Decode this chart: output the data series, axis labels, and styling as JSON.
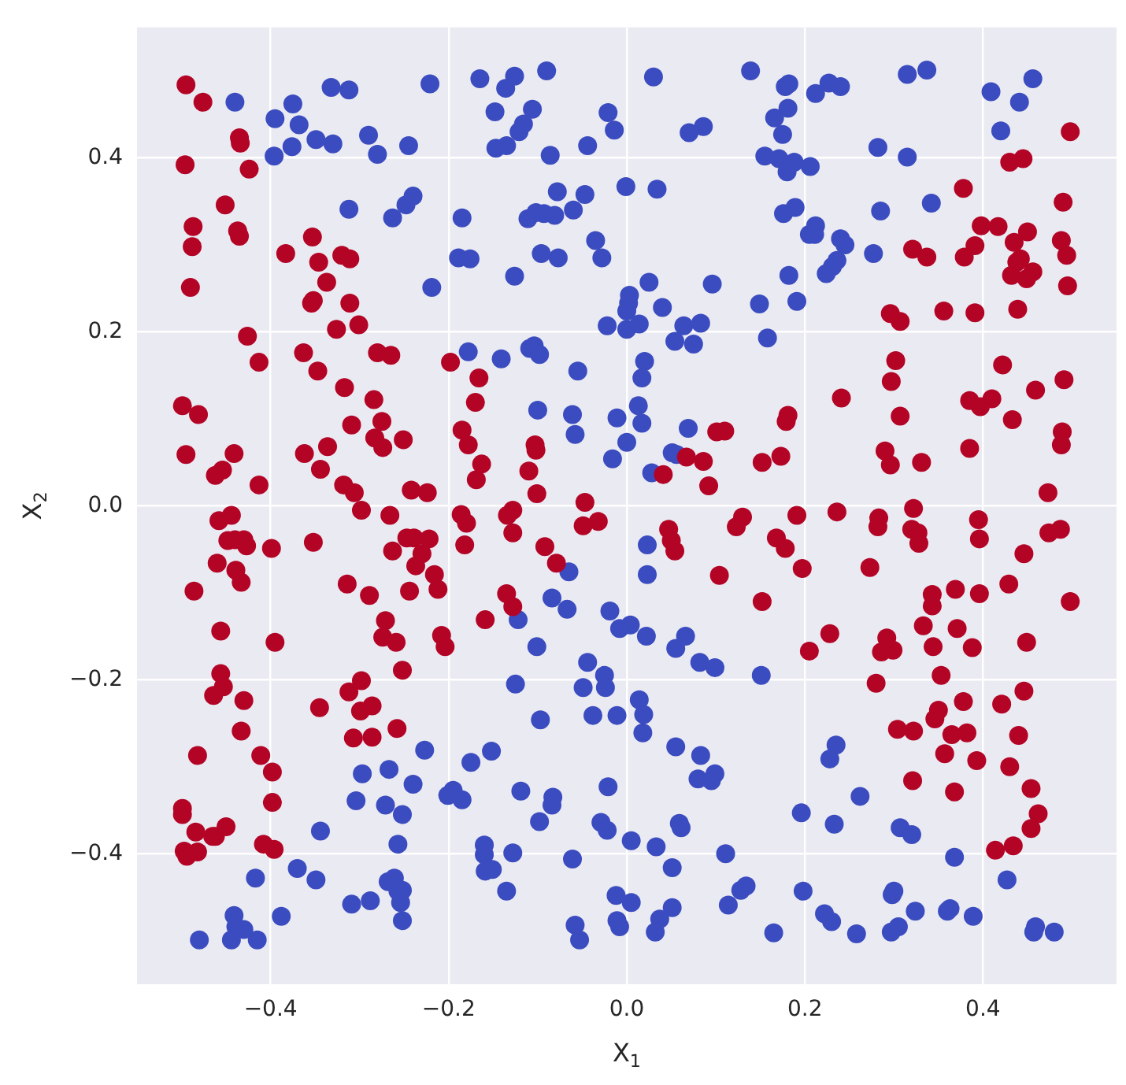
{
  "chart_data": {
    "type": "scatter",
    "xlabel": "X$_{1}$",
    "ylabel": "X$_{2}$",
    "xlim": [
      -0.55,
      0.55
    ],
    "ylim": [
      -0.55,
      0.55
    ],
    "xticks": [
      {
        "value": -0.4,
        "label": "−0.4"
      },
      {
        "value": -0.2,
        "label": "−0.2"
      },
      {
        "value": 0,
        "label": "0.0"
      },
      {
        "value": 0.2,
        "label": "0.2"
      },
      {
        "value": 0.4,
        "label": "0.4"
      }
    ],
    "yticks": [
      {
        "value": -0.4,
        "label": "−0.4"
      },
      {
        "value": -0.2,
        "label": "−0.2"
      },
      {
        "value": 0,
        "label": "0.0"
      },
      {
        "value": 0.2,
        "label": "0.2"
      },
      {
        "value": 0.4,
        "label": "0.4"
      }
    ],
    "grid": true,
    "marker": "circle",
    "series": [
      {
        "color": "#b40426",
        "x": [
          -0.495,
          -0.476,
          -0.435,
          -0.434,
          -0.496,
          -0.424,
          -0.451,
          -0.487,
          -0.437,
          -0.435,
          -0.488,
          -0.49,
          -0.353,
          -0.383,
          -0.346,
          -0.32,
          -0.311,
          -0.337,
          -0.354,
          -0.352,
          -0.311,
          -0.326,
          -0.301,
          -0.426,
          -0.413,
          -0.363,
          -0.347,
          -0.28,
          -0.265,
          -0.317,
          -0.198,
          -0.166,
          -0.17,
          -0.284,
          -0.499,
          -0.481,
          -0.275,
          -0.309,
          -0.283,
          -0.274,
          -0.251,
          -0.185,
          -0.178,
          -0.163,
          -0.169,
          -0.103,
          -0.102,
          -0.11,
          -0.101,
          -0.047,
          -0.495,
          -0.441,
          -0.462,
          -0.454,
          -0.413,
          -0.362,
          -0.336,
          -0.344,
          -0.318,
          -0.306,
          -0.242,
          -0.224,
          0.498,
          0.43,
          0.445,
          0.378,
          0.49,
          0.398,
          0.417,
          0.391,
          0.435,
          0.45,
          0.488,
          0.494,
          0.379,
          0.321,
          0.337,
          0.438,
          0.442,
          0.432,
          0.449,
          0.456,
          0.495,
          0.296,
          0.307,
          0.356,
          0.391,
          0.439,
          0.302,
          0.297,
          0.241,
          0.307,
          0.422,
          0.385,
          0.397,
          0.41,
          0.433,
          0.459,
          0.491,
          0.489,
          0.488,
          0.385,
          0.473,
          0.29,
          0.296,
          0.331,
          0.181,
          0.179,
          0.101,
          0.11,
          0.067,
          0.086,
          0.041,
          0.092,
          0.152,
          0.173,
          -0.298,
          -0.266,
          -0.186,
          -0.18,
          -0.134,
          -0.128,
          -0.128,
          -0.032,
          -0.049,
          -0.458,
          -0.444,
          -0.448,
          -0.44,
          -0.43,
          -0.427,
          -0.399,
          -0.352,
          -0.46,
          -0.439,
          -0.433,
          -0.486,
          -0.247,
          -0.239,
          -0.222,
          -0.263,
          -0.23,
          -0.237,
          -0.216,
          -0.314,
          -0.289,
          -0.244,
          -0.212,
          -0.182,
          -0.092,
          -0.079,
          -0.135,
          -0.128,
          -0.159,
          -0.271,
          -0.274,
          -0.259,
          -0.208,
          -0.204,
          -0.252,
          -0.456,
          -0.395,
          -0.456,
          -0.453,
          -0.464,
          -0.43,
          -0.433,
          -0.482,
          -0.411,
          -0.398,
          -0.398,
          -0.499,
          -0.499,
          -0.484,
          -0.465,
          -0.462,
          -0.45,
          -0.497,
          -0.494,
          -0.482,
          -0.408,
          -0.396,
          -0.298,
          -0.312,
          -0.345,
          -0.299,
          -0.286,
          -0.258,
          -0.307,
          -0.286,
          0.13,
          0.123,
          0.191,
          0.236,
          0.283,
          0.282,
          0.322,
          0.32,
          0.327,
          0.328,
          0.395,
          0.396,
          0.474,
          0.487,
          0.446,
          0.047,
          0.05,
          0.054,
          0.168,
          0.178,
          0.104,
          0.197,
          0.273,
          0.152,
          0.343,
          0.343,
          0.369,
          0.396,
          0.429,
          0.498,
          0.333,
          0.371,
          0.292,
          0.286,
          0.299,
          0.344,
          0.388,
          0.449,
          0.205,
          0.228,
          0.28,
          0.353,
          0.446,
          0.378,
          0.421,
          0.35,
          0.346,
          0.304,
          0.322,
          0.365,
          0.382,
          0.44,
          0.357,
          0.393,
          0.43,
          0.454,
          0.321,
          0.368,
          0.462,
          0.454,
          0.414,
          0.434
        ],
        "values": [
          0.484,
          0.464,
          0.423,
          0.417,
          0.392,
          0.387,
          0.346,
          0.321,
          0.316,
          0.31,
          0.298,
          0.251,
          0.309,
          0.29,
          0.28,
          0.288,
          0.284,
          0.257,
          0.233,
          0.236,
          0.233,
          0.203,
          0.208,
          0.195,
          0.165,
          0.176,
          0.155,
          0.176,
          0.173,
          0.136,
          0.165,
          0.147,
          0.119,
          0.122,
          0.115,
          0.105,
          0.097,
          0.093,
          0.078,
          0.067,
          0.076,
          0.087,
          0.07,
          0.048,
          0.03,
          0.07,
          0.064,
          0.04,
          0.014,
          0.004,
          0.059,
          0.06,
          0.035,
          0.041,
          0.024,
          0.06,
          0.068,
          0.042,
          0.024,
          0.015,
          0.018,
          0.015,
          0.43,
          0.395,
          0.399,
          0.365,
          0.349,
          0.322,
          0.321,
          0.299,
          0.303,
          0.315,
          0.305,
          0.288,
          0.286,
          0.295,
          0.286,
          0.28,
          0.284,
          0.265,
          0.261,
          0.269,
          0.253,
          0.221,
          0.212,
          0.224,
          0.222,
          0.226,
          0.167,
          0.143,
          0.124,
          0.103,
          0.162,
          0.121,
          0.114,
          0.123,
          0.099,
          0.133,
          0.145,
          0.085,
          0.07,
          0.066,
          0.015,
          0.063,
          0.047,
          0.05,
          0.104,
          0.097,
          0.085,
          0.086,
          0.056,
          0.051,
          0.036,
          0.023,
          0.05,
          0.057,
          -0.005,
          -0.011,
          -0.01,
          -0.02,
          -0.011,
          -0.005,
          -0.031,
          -0.018,
          -0.023,
          -0.017,
          -0.011,
          -0.04,
          -0.039,
          -0.039,
          -0.046,
          -0.049,
          -0.042,
          -0.066,
          -0.074,
          -0.088,
          -0.098,
          -0.037,
          -0.037,
          -0.038,
          -0.052,
          -0.055,
          -0.069,
          -0.079,
          -0.09,
          -0.103,
          -0.098,
          -0.096,
          -0.045,
          -0.047,
          -0.066,
          -0.101,
          -0.116,
          -0.131,
          -0.132,
          -0.151,
          -0.157,
          -0.149,
          -0.162,
          -0.189,
          -0.144,
          -0.157,
          -0.193,
          -0.208,
          -0.218,
          -0.224,
          -0.259,
          -0.287,
          -0.287,
          -0.306,
          -0.341,
          -0.348,
          -0.355,
          -0.375,
          -0.38,
          -0.38,
          -0.369,
          -0.397,
          -0.403,
          -0.398,
          -0.389,
          -0.395,
          -0.201,
          -0.214,
          -0.232,
          -0.236,
          -0.23,
          -0.256,
          -0.267,
          -0.266,
          -0.013,
          -0.024,
          -0.011,
          -0.007,
          -0.014,
          -0.024,
          -0.003,
          -0.027,
          -0.031,
          -0.043,
          -0.016,
          -0.038,
          -0.031,
          -0.027,
          -0.055,
          -0.027,
          -0.04,
          -0.052,
          -0.037,
          -0.049,
          -0.08,
          -0.072,
          -0.071,
          -0.11,
          -0.102,
          -0.115,
          -0.096,
          -0.101,
          -0.09,
          -0.11,
          -0.138,
          -0.141,
          -0.152,
          -0.168,
          -0.166,
          -0.162,
          -0.163,
          -0.157,
          -0.167,
          -0.147,
          -0.204,
          -0.195,
          -0.213,
          -0.225,
          -0.228,
          -0.235,
          -0.245,
          -0.257,
          -0.259,
          -0.263,
          -0.261,
          -0.264,
          -0.285,
          -0.293,
          -0.3,
          -0.325,
          -0.316,
          -0.329,
          -0.354,
          -0.371,
          -0.396,
          -0.391
        ]
      },
      {
        "color": "#3b4cc0",
        "x": [
          -0.44,
          -0.375,
          -0.395,
          -0.368,
          -0.396,
          -0.376,
          -0.349,
          -0.33,
          -0.332,
          -0.312,
          -0.29,
          -0.28,
          -0.245,
          -0.221,
          -0.165,
          -0.136,
          -0.126,
          -0.09,
          -0.148,
          -0.106,
          -0.116,
          -0.121,
          -0.147,
          -0.135,
          -0.086,
          -0.044,
          -0.021,
          -0.014,
          -0.001,
          -0.312,
          -0.263,
          -0.248,
          -0.24,
          -0.185,
          -0.189,
          -0.176,
          -0.219,
          -0.126,
          -0.111,
          -0.102,
          -0.093,
          -0.081,
          -0.078,
          -0.047,
          -0.06,
          -0.096,
          -0.077,
          -0.035,
          -0.028,
          -0.022,
          0.003,
          0.002,
          0.0,
          0.014,
          0.0,
          0.025,
          0.04,
          -0.178,
          -0.141,
          -0.109,
          -0.104,
          -0.098,
          -0.055,
          -0.1,
          -0.061,
          -0.058,
          -0.011,
          -0.016,
          0.0,
          0.03,
          0.139,
          0.178,
          0.182,
          0.212,
          0.227,
          0.24,
          0.181,
          0.166,
          0.175,
          0.07,
          0.086,
          0.155,
          0.171,
          0.188,
          0.18,
          0.206,
          0.315,
          0.337,
          0.282,
          0.315,
          0.409,
          0.456,
          0.441,
          0.42,
          0.034,
          0.176,
          0.189,
          0.285,
          0.342,
          0.212,
          0.205,
          0.211,
          0.24,
          0.245,
          0.277,
          0.236,
          0.231,
          0.224,
          0.182,
          0.096,
          0.149,
          0.191,
          0.064,
          0.083,
          0.054,
          0.075,
          0.158,
          0.02,
          0.017,
          0.013,
          0.017,
          0.069,
          0.051,
          0.056,
          0.028,
          -0.065,
          -0.084,
          -0.067,
          -0.019,
          -0.008,
          0.004,
          -0.122,
          -0.101,
          -0.044,
          -0.025,
          -0.024,
          -0.049,
          -0.125,
          -0.097,
          -0.038,
          -0.011,
          -0.227,
          -0.152,
          -0.175,
          -0.297,
          -0.267,
          -0.24,
          -0.304,
          -0.271,
          -0.252,
          -0.201,
          -0.195,
          -0.185,
          -0.119,
          -0.083,
          -0.084,
          -0.098,
          -0.021,
          -0.029,
          -0.022,
          0.005,
          -0.344,
          -0.257,
          -0.16,
          -0.16,
          -0.159,
          -0.151,
          -0.128,
          -0.061,
          -0.135,
          -0.012,
          0.005,
          -0.011,
          -0.008,
          -0.058,
          -0.053,
          -0.417,
          -0.37,
          -0.349,
          -0.441,
          -0.439,
          -0.43,
          -0.388,
          -0.48,
          -0.444,
          -0.415,
          -0.309,
          -0.288,
          -0.268,
          -0.261,
          -0.257,
          -0.252,
          -0.254,
          -0.252,
          0.023,
          0.023,
          0.022,
          0.066,
          0.055,
          0.082,
          0.099,
          0.151,
          0.014,
          0.019,
          0.018,
          0.055,
          0.083,
          0.08,
          0.095,
          0.099,
          0.235,
          0.228,
          0.262,
          0.196,
          0.233,
          0.059,
          0.061,
          0.033,
          0.111,
          0.051,
          0.307,
          0.32,
          0.368,
          0.427,
          0.128,
          0.134,
          0.198,
          0.114,
          0.051,
          0.037,
          0.032,
          0.165,
          0.222,
          0.23,
          0.258,
          0.298,
          0.3,
          0.297,
          0.305,
          0.324,
          0.36,
          0.363,
          0.389,
          0.459,
          0.457,
          0.48
        ],
        "values": [
          0.464,
          0.462,
          0.445,
          0.438,
          0.402,
          0.413,
          0.421,
          0.416,
          0.481,
          0.478,
          0.426,
          0.404,
          0.414,
          0.485,
          0.491,
          0.48,
          0.494,
          0.5,
          0.453,
          0.456,
          0.439,
          0.43,
          0.411,
          0.414,
          0.403,
          0.414,
          0.452,
          0.432,
          0.367,
          0.341,
          0.331,
          0.346,
          0.356,
          0.331,
          0.285,
          0.284,
          0.251,
          0.264,
          0.33,
          0.337,
          0.336,
          0.334,
          0.361,
          0.358,
          0.34,
          0.29,
          0.285,
          0.305,
          0.285,
          0.207,
          0.242,
          0.233,
          0.224,
          0.209,
          0.203,
          0.257,
          0.228,
          0.177,
          0.169,
          0.181,
          0.184,
          0.174,
          0.155,
          0.11,
          0.105,
          0.082,
          0.101,
          0.054,
          0.073,
          0.493,
          0.5,
          0.482,
          0.485,
          0.474,
          0.486,
          0.482,
          0.457,
          0.446,
          0.427,
          0.429,
          0.436,
          0.402,
          0.399,
          0.395,
          0.384,
          0.39,
          0.496,
          0.501,
          0.412,
          0.401,
          0.476,
          0.491,
          0.464,
          0.431,
          0.364,
          0.336,
          0.343,
          0.339,
          0.348,
          0.322,
          0.312,
          0.312,
          0.307,
          0.3,
          0.29,
          0.282,
          0.275,
          0.267,
          0.265,
          0.255,
          0.232,
          0.235,
          0.207,
          0.21,
          0.189,
          0.186,
          0.193,
          0.166,
          0.147,
          0.115,
          0.095,
          0.089,
          0.061,
          0.059,
          0.038,
          -0.076,
          -0.106,
          -0.119,
          -0.121,
          -0.141,
          -0.137,
          -0.131,
          -0.162,
          -0.18,
          -0.195,
          -0.209,
          -0.209,
          -0.205,
          -0.246,
          -0.241,
          -0.241,
          -0.281,
          -0.282,
          -0.295,
          -0.308,
          -0.303,
          -0.32,
          -0.339,
          -0.344,
          -0.355,
          -0.333,
          -0.327,
          -0.338,
          -0.328,
          -0.335,
          -0.344,
          -0.363,
          -0.323,
          -0.364,
          -0.373,
          -0.385,
          -0.374,
          -0.389,
          -0.39,
          -0.401,
          -0.42,
          -0.418,
          -0.399,
          -0.406,
          -0.443,
          -0.448,
          -0.456,
          -0.477,
          -0.484,
          -0.482,
          -0.499,
          -0.428,
          -0.417,
          -0.43,
          -0.471,
          -0.484,
          -0.487,
          -0.472,
          -0.499,
          -0.499,
          -0.499,
          -0.458,
          -0.454,
          -0.432,
          -0.428,
          -0.443,
          -0.442,
          -0.456,
          -0.477,
          -0.045,
          -0.079,
          -0.15,
          -0.15,
          -0.164,
          -0.18,
          -0.186,
          -0.195,
          -0.223,
          -0.24,
          -0.261,
          -0.277,
          -0.287,
          -0.314,
          -0.316,
          -0.308,
          -0.275,
          -0.291,
          -0.334,
          -0.353,
          -0.366,
          -0.365,
          -0.37,
          -0.392,
          -0.4,
          -0.416,
          -0.37,
          -0.378,
          -0.404,
          -0.43,
          -0.442,
          -0.437,
          -0.443,
          -0.459,
          -0.462,
          -0.475,
          -0.49,
          -0.491,
          -0.469,
          -0.478,
          -0.492,
          -0.447,
          -0.443,
          -0.49,
          -0.484,
          -0.466,
          -0.466,
          -0.463,
          -0.472,
          -0.484,
          -0.49,
          -0.49
        ]
      }
    ]
  }
}
